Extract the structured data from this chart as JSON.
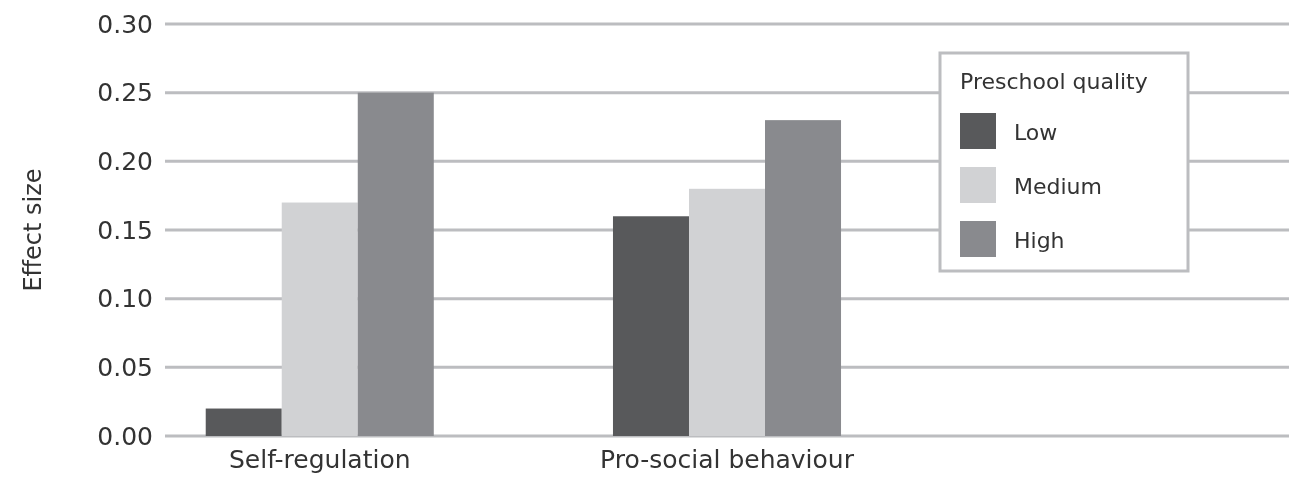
{
  "chart_data": {
    "type": "bar",
    "ylabel": "Effect size",
    "legend_title": "Preschool quality",
    "categories": [
      "Self-regulation",
      "Pro-social behaviour",
      null
    ],
    "series": [
      {
        "name": "Low",
        "color": "#58595b",
        "values": [
          0.02,
          0.16,
          null
        ]
      },
      {
        "name": "Medium",
        "color": "#d1d2d4",
        "values": [
          0.17,
          0.18,
          null
        ]
      },
      {
        "name": "High",
        "color": "#898a8e",
        "values": [
          0.25,
          0.23,
          null
        ]
      }
    ],
    "ylim": [
      0,
      0.3
    ],
    "yticks": [
      {
        "value": 0,
        "label": "0.00"
      },
      {
        "value": 0.05,
        "label": "0.05"
      },
      {
        "value": 0.1,
        "label": "0.10"
      },
      {
        "value": 0.15,
        "label": "0.15"
      },
      {
        "value": 0.2,
        "label": "0.20"
      },
      {
        "value": 0.25,
        "label": "0.25"
      },
      {
        "value": 0.3,
        "label": "0.30"
      }
    ],
    "grid": "y",
    "legend": "top right"
  }
}
